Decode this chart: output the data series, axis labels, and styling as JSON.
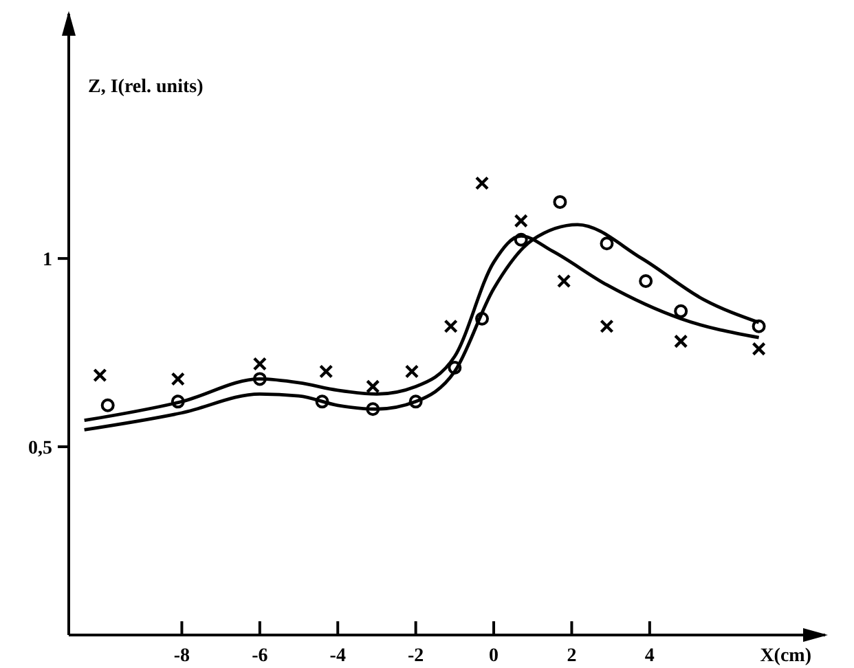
{
  "chart_data": {
    "type": "scatter",
    "ylabel": "Z, I(rel. units)",
    "xlabel": "X(cm)",
    "xlim": [
      -10.9,
      8.5
    ],
    "ylim": [
      0,
      1.65
    ],
    "xticks": [
      -8,
      -6,
      -4,
      -2,
      0,
      2,
      4
    ],
    "yticks": [
      {
        "value": 0.5,
        "label": "0,5"
      },
      1
    ],
    "series": [
      {
        "marker": "cross",
        "color": "#000000",
        "x": [
          -10.1,
          -8.1,
          -6.0,
          -4.3,
          -3.1,
          -2.1,
          -1.1,
          -0.3,
          0.7,
          1.8,
          2.9,
          4.8,
          6.8
        ],
        "values": [
          0.69,
          0.68,
          0.72,
          0.7,
          0.66,
          0.7,
          0.82,
          1.2,
          1.1,
          0.94,
          0.82,
          0.78,
          0.76
        ]
      },
      {
        "marker": "circle",
        "color": "#000000",
        "x": [
          -9.9,
          -8.1,
          -6.0,
          -4.4,
          -3.1,
          -2.0,
          -1.0,
          -0.3,
          0.7,
          1.7,
          2.9,
          3.9,
          4.8,
          6.8
        ],
        "values": [
          0.61,
          0.62,
          0.68,
          0.62,
          0.6,
          0.62,
          0.71,
          0.84,
          1.05,
          1.15,
          1.04,
          0.94,
          0.86,
          0.82
        ]
      },
      {
        "type": "line",
        "color": "#000000",
        "x": [
          -10.5,
          -8,
          -6,
          -5,
          -4,
          -3,
          -2,
          -1,
          0,
          0.7,
          1.5,
          2.9,
          4.8,
          6.8
        ],
        "values": [
          0.57,
          0.62,
          0.68,
          0.67,
          0.65,
          0.64,
          0.66,
          0.74,
          0.99,
          1.06,
          1.02,
          0.93,
          0.84,
          0.79
        ]
      },
      {
        "type": "line",
        "color": "#000000",
        "x": [
          -10.5,
          -8,
          -6,
          -5,
          -4,
          -3,
          -2,
          -1,
          0,
          1,
          2.15,
          3.8,
          5.4,
          6.8
        ],
        "values": [
          0.545,
          0.59,
          0.64,
          0.635,
          0.61,
          0.6,
          0.62,
          0.7,
          0.92,
          1.05,
          1.09,
          1.0,
          0.89,
          0.83
        ]
      }
    ]
  }
}
